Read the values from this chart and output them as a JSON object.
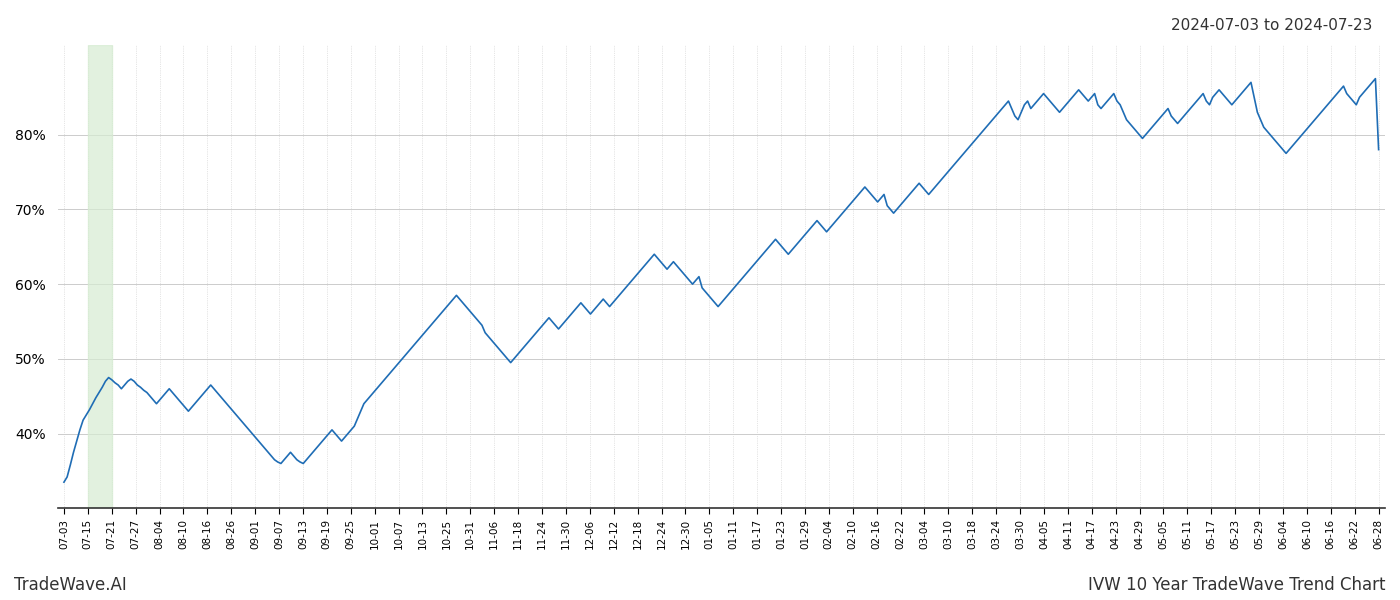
{
  "title_right": "2024-07-03 to 2024-07-23",
  "footer_left": "TradeWave.AI",
  "footer_right": "IVW 10 Year TradeWave Trend Chart",
  "line_color": "#1f6db5",
  "line_width": 1.2,
  "highlight_color": "#d6ecd2",
  "highlight_alpha": 0.7,
  "background_color": "#ffffff",
  "grid_color": "#cccccc",
  "ylim": [
    30,
    92
  ],
  "yticks": [
    40,
    50,
    60,
    70,
    80
  ],
  "x_labels": [
    "07-03",
    "07-15",
    "07-21",
    "07-27",
    "08-04",
    "08-10",
    "08-16",
    "08-26",
    "09-01",
    "09-07",
    "09-13",
    "09-19",
    "09-25",
    "10-01",
    "10-07",
    "10-13",
    "10-25",
    "10-31",
    "11-06",
    "11-18",
    "11-24",
    "11-30",
    "12-06",
    "12-12",
    "12-18",
    "12-24",
    "12-30",
    "01-05",
    "01-11",
    "01-17",
    "01-23",
    "01-29",
    "02-04",
    "02-10",
    "02-16",
    "02-22",
    "03-04",
    "03-10",
    "03-18",
    "03-24",
    "03-30",
    "04-05",
    "04-11",
    "04-17",
    "04-23",
    "04-29",
    "05-05",
    "05-11",
    "05-17",
    "05-23",
    "05-29",
    "06-04",
    "06-10",
    "06-16",
    "06-22",
    "06-28"
  ],
  "highlight_start_label": "07-15",
  "highlight_end_label": "07-21",
  "values": [
    33.5,
    34.2,
    35.8,
    37.5,
    39.0,
    40.5,
    41.8,
    42.5,
    43.2,
    44.0,
    44.8,
    45.5,
    46.2,
    47.0,
    47.5,
    47.2,
    46.8,
    46.5,
    46.0,
    46.5,
    47.0,
    47.3,
    47.0,
    46.5,
    46.2,
    45.8,
    45.5,
    45.0,
    44.5,
    44.0,
    44.5,
    45.0,
    45.5,
    46.0,
    45.5,
    45.0,
    44.5,
    44.0,
    43.5,
    43.0,
    43.5,
    44.0,
    44.5,
    45.0,
    45.5,
    46.0,
    46.5,
    46.0,
    45.5,
    45.0,
    44.5,
    44.0,
    43.5,
    43.0,
    42.5,
    42.0,
    41.5,
    41.0,
    40.5,
    40.0,
    39.5,
    39.0,
    38.5,
    38.0,
    37.5,
    37.0,
    36.5,
    36.2,
    36.0,
    36.5,
    37.0,
    37.5,
    37.0,
    36.5,
    36.2,
    36.0,
    36.5,
    37.0,
    37.5,
    38.0,
    38.5,
    39.0,
    39.5,
    40.0,
    40.5,
    40.0,
    39.5,
    39.0,
    39.5,
    40.0,
    40.5,
    41.0,
    42.0,
    43.0,
    44.0,
    44.5,
    45.0,
    45.5,
    46.0,
    46.5,
    47.0,
    47.5,
    48.0,
    48.5,
    49.0,
    49.5,
    50.0,
    50.5,
    51.0,
    51.5,
    52.0,
    52.5,
    53.0,
    53.5,
    54.0,
    54.5,
    55.0,
    55.5,
    56.0,
    56.5,
    57.0,
    57.5,
    58.0,
    58.5,
    58.0,
    57.5,
    57.0,
    56.5,
    56.0,
    55.5,
    55.0,
    54.5,
    53.5,
    53.0,
    52.5,
    52.0,
    51.5,
    51.0,
    50.5,
    50.0,
    49.5,
    50.0,
    50.5,
    51.0,
    51.5,
    52.0,
    52.5,
    53.0,
    53.5,
    54.0,
    54.5,
    55.0,
    55.5,
    55.0,
    54.5,
    54.0,
    54.5,
    55.0,
    55.5,
    56.0,
    56.5,
    57.0,
    57.5,
    57.0,
    56.5,
    56.0,
    56.5,
    57.0,
    57.5,
    58.0,
    57.5,
    57.0,
    57.5,
    58.0,
    58.5,
    59.0,
    59.5,
    60.0,
    60.5,
    61.0,
    61.5,
    62.0,
    62.5,
    63.0,
    63.5,
    64.0,
    63.5,
    63.0,
    62.5,
    62.0,
    62.5,
    63.0,
    62.5,
    62.0,
    61.5,
    61.0,
    60.5,
    60.0,
    60.5,
    61.0,
    59.5,
    59.0,
    58.5,
    58.0,
    57.5,
    57.0,
    57.5,
    58.0,
    58.5,
    59.0,
    59.5,
    60.0,
    60.5,
    61.0,
    61.5,
    62.0,
    62.5,
    63.0,
    63.5,
    64.0,
    64.5,
    65.0,
    65.5,
    66.0,
    65.5,
    65.0,
    64.5,
    64.0,
    64.5,
    65.0,
    65.5,
    66.0,
    66.5,
    67.0,
    67.5,
    68.0,
    68.5,
    68.0,
    67.5,
    67.0,
    67.5,
    68.0,
    68.5,
    69.0,
    69.5,
    70.0,
    70.5,
    71.0,
    71.5,
    72.0,
    72.5,
    73.0,
    72.5,
    72.0,
    71.5,
    71.0,
    71.5,
    72.0,
    70.5,
    70.0,
    69.5,
    70.0,
    70.5,
    71.0,
    71.5,
    72.0,
    72.5,
    73.0,
    73.5,
    73.0,
    72.5,
    72.0,
    72.5,
    73.0,
    73.5,
    74.0,
    74.5,
    75.0,
    75.5,
    76.0,
    76.5,
    77.0,
    77.5,
    78.0,
    78.5,
    79.0,
    79.5,
    80.0,
    80.5,
    81.0,
    81.5,
    82.0,
    82.5,
    83.0,
    83.5,
    84.0,
    84.5,
    83.5,
    82.5,
    82.0,
    83.0,
    84.0,
    84.5,
    83.5,
    84.0,
    84.5,
    85.0,
    85.5,
    85.0,
    84.5,
    84.0,
    83.5,
    83.0,
    83.5,
    84.0,
    84.5,
    85.0,
    85.5,
    86.0,
    85.5,
    85.0,
    84.5,
    85.0,
    85.5,
    84.0,
    83.5,
    84.0,
    84.5,
    85.0,
    85.5,
    84.5,
    84.0,
    83.0,
    82.0,
    81.5,
    81.0,
    80.5,
    80.0,
    79.5,
    80.0,
    80.5,
    81.0,
    81.5,
    82.0,
    82.5,
    83.0,
    83.5,
    82.5,
    82.0,
    81.5,
    82.0,
    82.5,
    83.0,
    83.5,
    84.0,
    84.5,
    85.0,
    85.5,
    84.5,
    84.0,
    85.0,
    85.5,
    86.0,
    85.5,
    85.0,
    84.5,
    84.0,
    84.5,
    85.0,
    85.5,
    86.0,
    86.5,
    87.0,
    85.0,
    83.0,
    82.0,
    81.0,
    80.5,
    80.0,
    79.5,
    79.0,
    78.5,
    78.0,
    77.5,
    78.0,
    78.5,
    79.0,
    79.5,
    80.0,
    80.5,
    81.0,
    81.5,
    82.0,
    82.5,
    83.0,
    83.5,
    84.0,
    84.5,
    85.0,
    85.5,
    86.0,
    86.5,
    85.5,
    85.0,
    84.5,
    84.0,
    85.0,
    85.5,
    86.0,
    86.5,
    87.0,
    87.5,
    78.0
  ]
}
